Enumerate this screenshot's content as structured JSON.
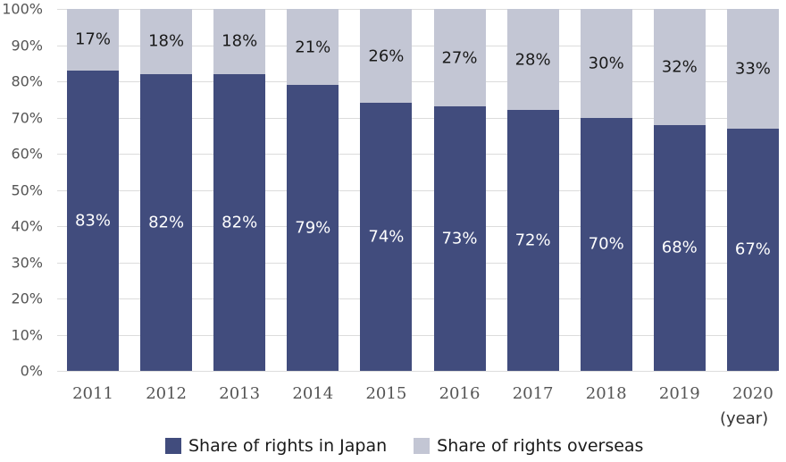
{
  "chart_data": {
    "type": "bar",
    "stacked": true,
    "title": "",
    "xlabel": "(year)",
    "ylabel": "",
    "ylim": [
      0,
      100
    ],
    "y_ticks": [
      "0%",
      "10%",
      "20%",
      "30%",
      "40%",
      "50%",
      "60%",
      "70%",
      "80%",
      "90%",
      "100%"
    ],
    "categories": [
      "2011",
      "2012",
      "2013",
      "2014",
      "2015",
      "2016",
      "2017",
      "2018",
      "2019",
      "2020"
    ],
    "series": [
      {
        "name": "Share of rights in Japan",
        "color": "#414c7d",
        "values": [
          83,
          82,
          82,
          79,
          74,
          73,
          72,
          70,
          68,
          67
        ],
        "labels": [
          "83%",
          "82%",
          "82%",
          "79%",
          "74%",
          "73%",
          "72%",
          "70%",
          "68%",
          "67%"
        ]
      },
      {
        "name": "Share of rights overseas",
        "color": "#c3c6d4",
        "values": [
          17,
          18,
          18,
          21,
          26,
          27,
          28,
          30,
          32,
          33
        ],
        "labels": [
          "17%",
          "18%",
          "18%",
          "21%",
          "26%",
          "27%",
          "28%",
          "30%",
          "32%",
          "33%"
        ]
      }
    ],
    "grid": true,
    "legend_position": "bottom"
  },
  "axis": {
    "x_unit": "(year)"
  },
  "legend": [
    {
      "label": "Share of rights in Japan",
      "color": "#414c7d"
    },
    {
      "label": "Share of rights overseas",
      "color": "#c3c6d4"
    }
  ]
}
